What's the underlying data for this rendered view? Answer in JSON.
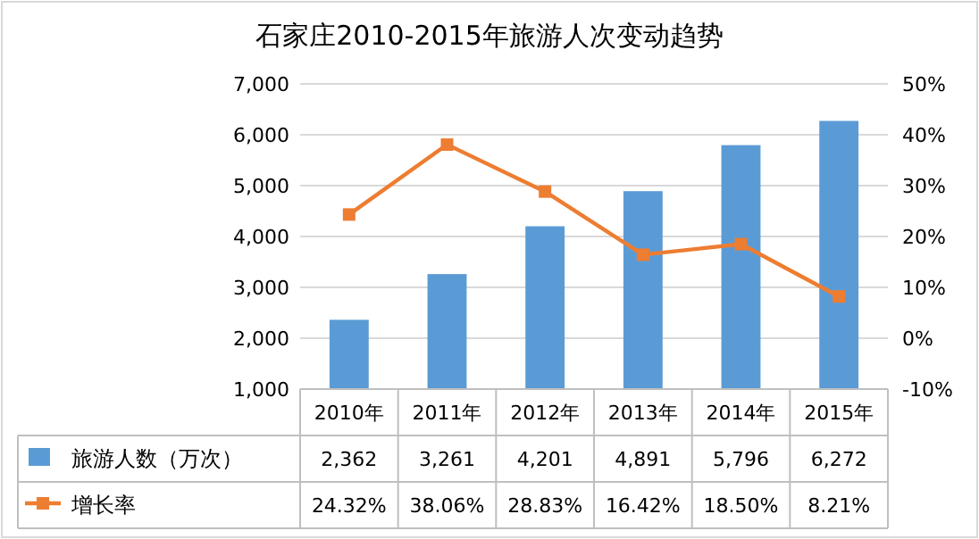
{
  "chart_data": {
    "type": "bar",
    "title": "石家庄2010-2015年旅游人次变动趋势",
    "categories": [
      "2010年",
      "2011年",
      "2012年",
      "2013年",
      "2014年",
      "2015年"
    ],
    "series": [
      {
        "name": "旅游人数（万次）",
        "color": "#5b9bd5",
        "values": [
          2362,
          3261,
          4201,
          4891,
          5796,
          6272
        ],
        "value_labels": [
          "2,362",
          "3,261",
          "4,201",
          "4,891",
          "5,796",
          "6,272"
        ]
      },
      {
        "name": "增长率",
        "type": "line",
        "axis": "y2",
        "color": "#ed7d31",
        "marker": "square",
        "values": [
          24.32,
          38.06,
          28.83,
          16.42,
          18.5,
          8.21
        ],
        "value_labels": [
          "24.32%",
          "38.06%",
          "28.83%",
          "16.42%",
          "18.50%",
          "8.21%"
        ]
      }
    ],
    "ylim": [
      1000,
      7000
    ],
    "yticks": [
      {
        "value": 1000,
        "label": "1,000"
      },
      {
        "value": 2000,
        "label": "2,000"
      },
      {
        "value": 3000,
        "label": "3,000"
      },
      {
        "value": 4000,
        "label": "4,000"
      },
      {
        "value": 5000,
        "label": "5,000"
      },
      {
        "value": 6000,
        "label": "6,000"
      },
      {
        "value": 7000,
        "label": "7,000"
      }
    ],
    "y2lim": [
      -10,
      50
    ],
    "y2ticks": [
      {
        "value": -10,
        "label": "-10%"
      },
      {
        "value": 0,
        "label": "0%"
      },
      {
        "value": 10,
        "label": "10%"
      },
      {
        "value": 20,
        "label": "20%"
      },
      {
        "value": 30,
        "label": "30%"
      },
      {
        "value": 40,
        "label": "40%"
      },
      {
        "value": 50,
        "label": "50%"
      }
    ],
    "grid": "y",
    "legend": "bottom left"
  }
}
